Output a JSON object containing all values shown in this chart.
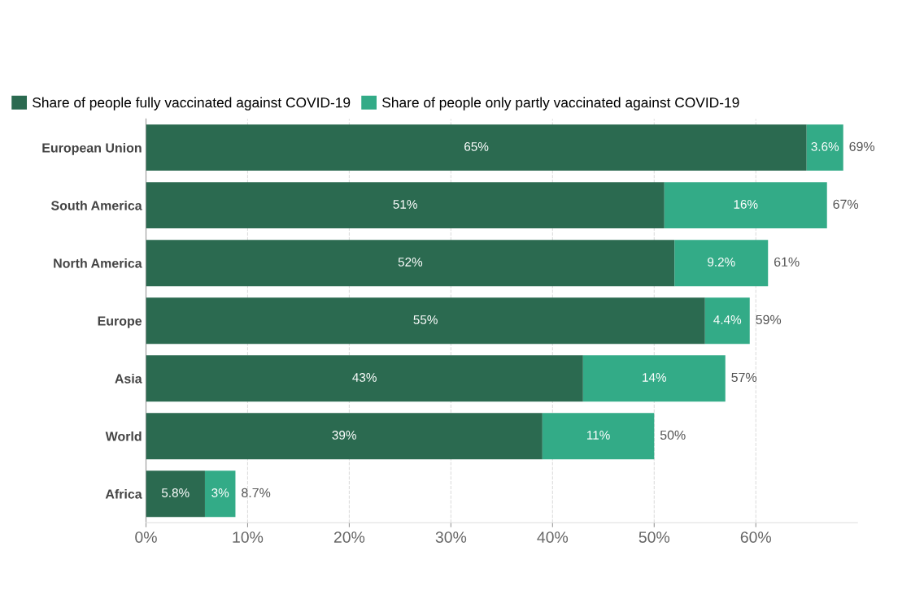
{
  "chart_data": {
    "type": "bar",
    "orientation": "horizontal",
    "stacked": true,
    "categories": [
      "European Union",
      "South America",
      "North America",
      "Europe",
      "Asia",
      "World",
      "Africa"
    ],
    "series": [
      {
        "name": "Share of people fully vaccinated against COVID-19",
        "color": "#2b6a50",
        "values": [
          65,
          51,
          52,
          55,
          43,
          39,
          5.8
        ],
        "value_labels": [
          "65%",
          "51%",
          "52%",
          "55%",
          "43%",
          "39%",
          "5.8%"
        ]
      },
      {
        "name": "Share of people only partly vaccinated against COVID-19",
        "color": "#33ab87",
        "values": [
          3.6,
          16,
          9.2,
          4.4,
          14,
          11,
          3
        ],
        "value_labels": [
          "3.6%",
          "16%",
          "9.2%",
          "4.4%",
          "14%",
          "11%",
          "3%"
        ]
      }
    ],
    "totals": [
      "69%",
      "67%",
      "61%",
      "59%",
      "57%",
      "50%",
      "8.7%"
    ],
    "xticks": [
      {
        "value": 0,
        "label": "0%"
      },
      {
        "value": 10,
        "label": "10%"
      },
      {
        "value": 20,
        "label": "20%"
      },
      {
        "value": 30,
        "label": "30%"
      },
      {
        "value": 40,
        "label": "40%"
      },
      {
        "value": 50,
        "label": "50%"
      },
      {
        "value": 60,
        "label": "60%"
      }
    ],
    "xlim": [
      0,
      70
    ],
    "grid": "x",
    "legend": "top left"
  }
}
